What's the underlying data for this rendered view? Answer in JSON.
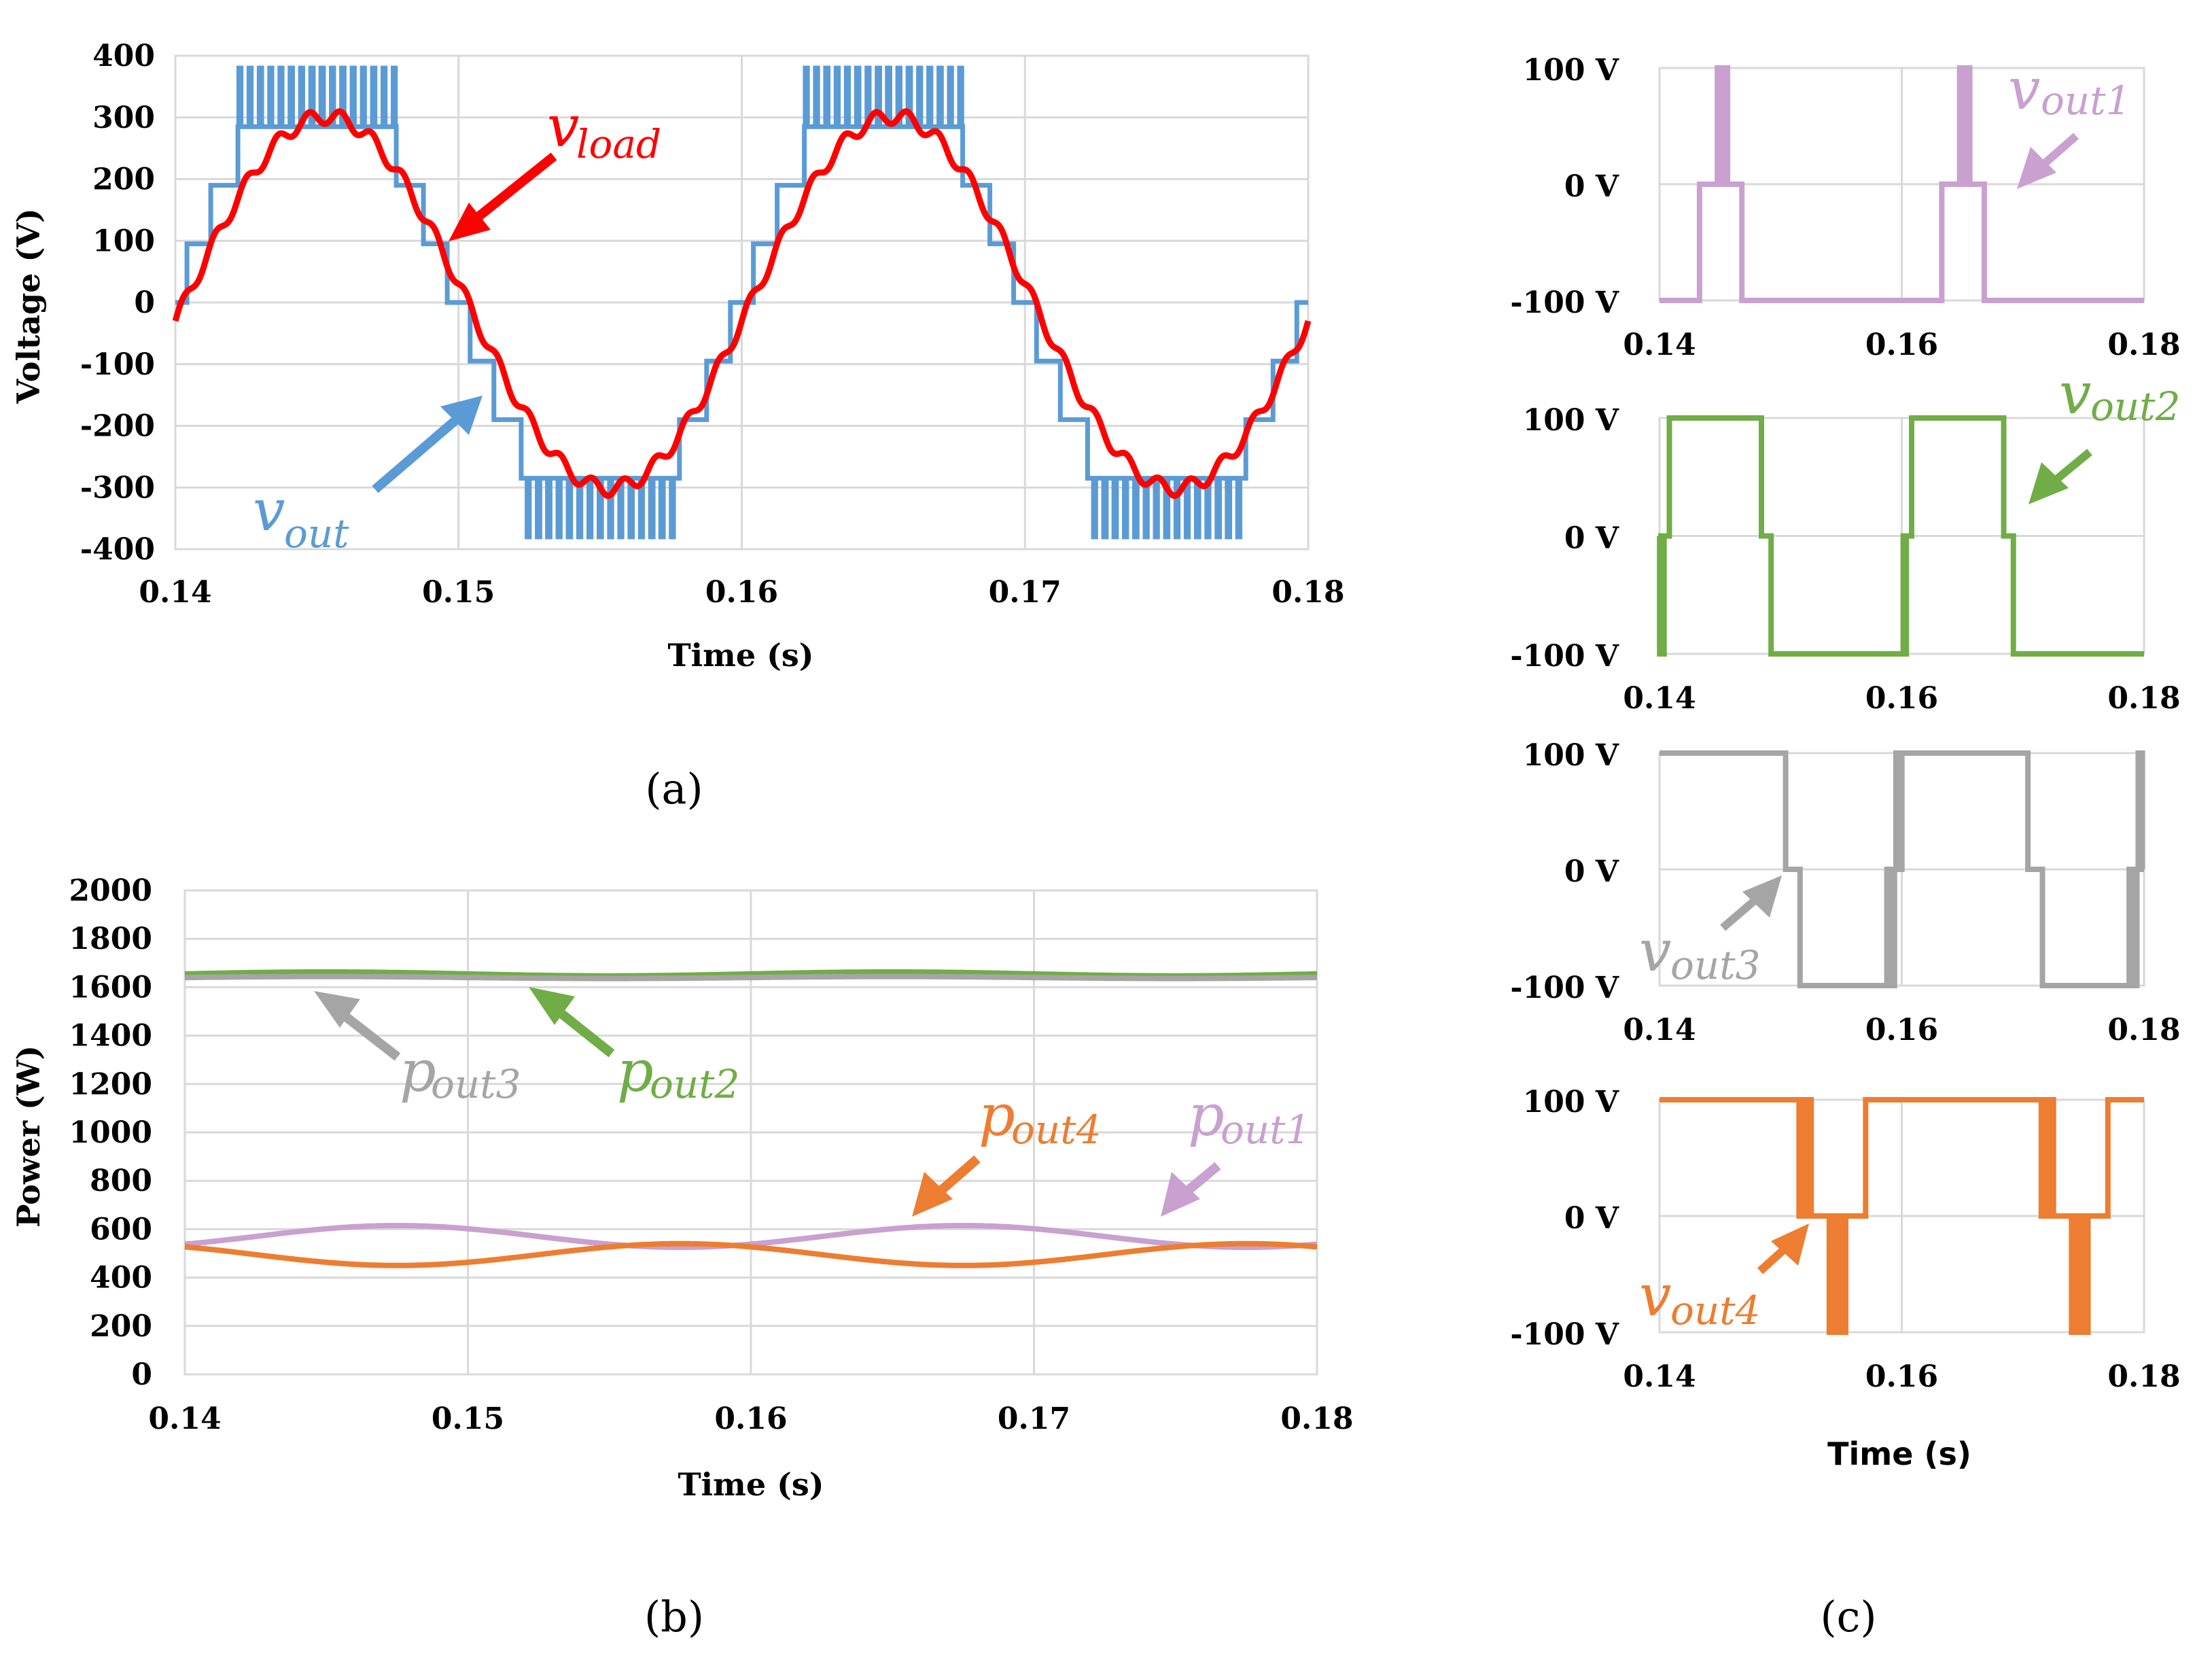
{
  "chart_data": [
    {
      "id": "a",
      "type": "line",
      "panel_label": "(a)",
      "xlabel": "Time (s)",
      "ylabel": "Voltage (V)",
      "xlim": [
        0.14,
        0.18
      ],
      "ylim": [
        -400,
        400
      ],
      "xticks": [
        "0.14",
        "0.15",
        "0.16",
        "0.17",
        "0.18"
      ],
      "yticks": [
        "400",
        "300",
        "200",
        "100",
        "0",
        "-100",
        "-200",
        "-300",
        "-400"
      ],
      "period_s": 0.02,
      "series": [
        {
          "name": "v_out",
          "color": "#5b9bd5",
          "waveform": "9-level staircase",
          "peak_V": 380,
          "level_step_V": 95
        },
        {
          "name": "v_load",
          "color": "#ff0000",
          "waveform": "filtered sine",
          "amplitude_V": 300
        }
      ],
      "annotations": [
        {
          "base": "v",
          "sub": "load",
          "color": "#ff0000"
        },
        {
          "base": "v",
          "sub": "out",
          "color": "#5b9bd5"
        }
      ]
    },
    {
      "id": "b",
      "type": "line",
      "panel_label": "(b)",
      "xlabel": "Time (s)",
      "ylabel": "Power (W)",
      "xlim": [
        0.14,
        0.18
      ],
      "ylim": [
        0,
        2000
      ],
      "xticks": [
        "0.14",
        "0.15",
        "0.16",
        "0.17",
        "0.18"
      ],
      "yticks": [
        "2000",
        "1800",
        "1600",
        "1400",
        "1200",
        "1000",
        "800",
        "600",
        "400",
        "200",
        "0"
      ],
      "series": [
        {
          "name": "p_out2",
          "color": "#70ad47",
          "mean_W": 1655,
          "ripple_W": 8
        },
        {
          "name": "p_out3",
          "color": "#a5a5a5",
          "mean_W": 1640,
          "ripple_W": 4
        },
        {
          "name": "p_out1",
          "color": "#c9a0d0",
          "mean_W": 570,
          "ripple_W": 45
        },
        {
          "name": "p_out4",
          "color": "#ed7d31",
          "mean_W": 495,
          "ripple_W": 45
        }
      ],
      "annotations": [
        {
          "base": "p",
          "sub": "out3",
          "color": "#a5a5a5"
        },
        {
          "base": "p",
          "sub": "out2",
          "color": "#70ad47"
        },
        {
          "base": "p",
          "sub": "out4",
          "color": "#ed7d31"
        },
        {
          "base": "p",
          "sub": "out1",
          "color": "#c9a0d0"
        }
      ]
    },
    {
      "id": "c",
      "type": "line",
      "panel_label": "(c)",
      "xlabel": "Time (s)",
      "xlim": [
        0.14,
        0.18
      ],
      "ylim": [
        -100,
        100
      ],
      "xticks": [
        "0.14",
        "0.16",
        "0.18"
      ],
      "yticks": [
        "100 V",
        "0 V",
        "-100 V"
      ],
      "subplots": [
        {
          "name": "v_out1",
          "base": "v",
          "sub": "out1",
          "color": "#c9a0d0"
        },
        {
          "name": "v_out2",
          "base": "v",
          "sub": "out2",
          "color": "#70ad47"
        },
        {
          "name": "v_out3",
          "base": "v",
          "sub": "out3",
          "color": "#a5a5a5"
        },
        {
          "name": "v_out4",
          "base": "v",
          "sub": "out4",
          "color": "#ed7d31"
        }
      ]
    }
  ]
}
